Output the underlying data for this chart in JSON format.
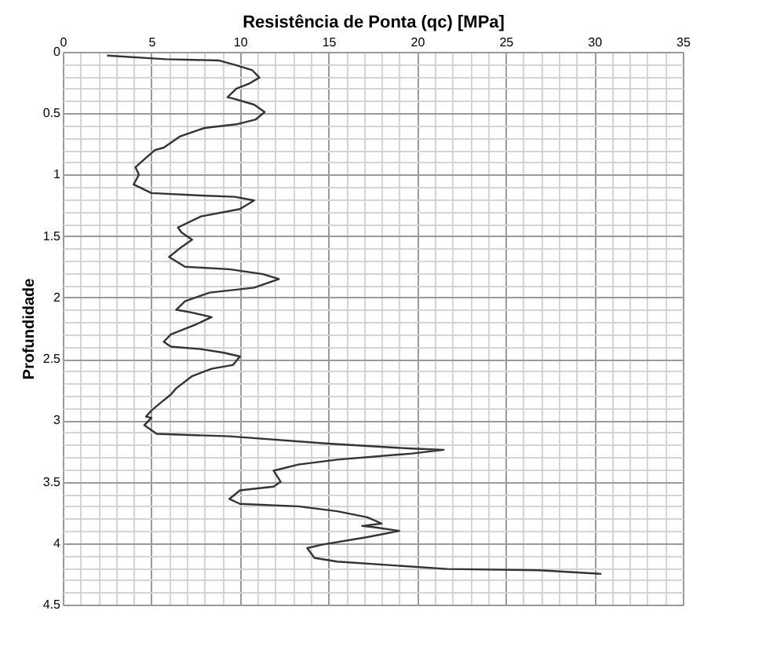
{
  "chart_data": {
    "type": "line",
    "xlabel": "Resistência de Ponta (qc)    [MPa]",
    "ylabel": "Profundidade",
    "xlim": [
      0,
      35
    ],
    "ylim": [
      4.5,
      0
    ],
    "xticks": [
      0,
      {
        "value": 1,
        "label": null
      },
      {
        "value": 2,
        "label": null
      },
      {
        "value": 3,
        "label": null
      },
      {
        "value": 4,
        "label": null
      },
      5,
      {
        "value": 6,
        "label": null
      },
      {
        "value": 7,
        "label": null
      },
      {
        "value": 8,
        "label": null
      },
      {
        "value": 9,
        "label": null
      },
      10,
      {
        "value": 11,
        "label": null
      },
      {
        "value": 12,
        "label": null
      },
      {
        "value": 13,
        "label": null
      },
      {
        "value": 14,
        "label": null
      },
      15,
      {
        "value": 16,
        "label": null
      },
      {
        "value": 17,
        "label": null
      },
      {
        "value": 18,
        "label": null
      },
      {
        "value": 19,
        "label": null
      },
      20,
      {
        "value": 21,
        "label": null
      },
      {
        "value": 22,
        "label": null
      },
      {
        "value": 23,
        "label": null
      },
      {
        "value": 24,
        "label": null
      },
      25,
      {
        "value": 26,
        "label": null
      },
      {
        "value": 27,
        "label": null
      },
      {
        "value": 28,
        "label": null
      },
      {
        "value": 29,
        "label": null
      },
      30,
      {
        "value": 31,
        "label": null
      },
      {
        "value": 32,
        "label": null
      },
      {
        "value": 33,
        "label": null
      },
      {
        "value": 34,
        "label": null
      },
      35
    ],
    "yticks": [
      0,
      {
        "value": 0.1,
        "label": null
      },
      {
        "value": 0.2,
        "label": null
      },
      {
        "value": 0.3,
        "label": null
      },
      {
        "value": 0.4,
        "label": null
      },
      0.5,
      {
        "value": 0.6,
        "label": null
      },
      {
        "value": 0.7,
        "label": null
      },
      {
        "value": 0.8,
        "label": null
      },
      {
        "value": 0.9,
        "label": null
      },
      1,
      {
        "value": 1.1,
        "label": null
      },
      {
        "value": 1.2,
        "label": null
      },
      {
        "value": 1.3,
        "label": null
      },
      {
        "value": 1.4,
        "label": null
      },
      1.5,
      {
        "value": 1.6,
        "label": null
      },
      {
        "value": 1.7,
        "label": null
      },
      {
        "value": 1.8,
        "label": null
      },
      {
        "value": 1.9,
        "label": null
      },
      2,
      {
        "value": 2.1,
        "label": null
      },
      {
        "value": 2.2,
        "label": null
      },
      {
        "value": 2.3,
        "label": null
      },
      {
        "value": 2.4,
        "label": null
      },
      2.5,
      {
        "value": 2.6,
        "label": null
      },
      {
        "value": 2.7,
        "label": null
      },
      {
        "value": 2.8,
        "label": null
      },
      {
        "value": 2.9,
        "label": null
      },
      3,
      {
        "value": 3.1,
        "label": null
      },
      {
        "value": 3.2,
        "label": null
      },
      {
        "value": 3.3,
        "label": null
      },
      {
        "value": 3.4,
        "label": null
      },
      3.5,
      {
        "value": 3.6,
        "label": null
      },
      {
        "value": 3.7,
        "label": null
      },
      {
        "value": 3.8,
        "label": null
      },
      {
        "value": 3.9,
        "label": null
      },
      4,
      {
        "value": 4.1,
        "label": null
      },
      {
        "value": 4.2,
        "label": null
      },
      {
        "value": 4.3,
        "label": null
      },
      {
        "value": 4.4,
        "label": null
      },
      4.5
    ],
    "grid": true,
    "legend": false,
    "marker": "none",
    "line_style": "solid",
    "series": [
      {
        "color": "#333333",
        "x": [
          2.5,
          5.8,
          8.8,
          9.8,
          10.7,
          11.1,
          10.5,
          9.8,
          9.3,
          9.6,
          10.8,
          11.4,
          10.9,
          9.8,
          8.0,
          6.6,
          6.2,
          5.7,
          5.2,
          4.4,
          4.1,
          4.3,
          4.0,
          4.3,
          5.0,
          7.8,
          9.7,
          10.8,
          10.0,
          7.8,
          6.5,
          6.7,
          7.3,
          6.6,
          6.0,
          6.9,
          9.4,
          11.3,
          12.2,
          10.8,
          8.3,
          6.9,
          6.4,
          7.2,
          8.4,
          7.5,
          6.1,
          5.7,
          6.1,
          7.8,
          9.1,
          10.0,
          9.6,
          8.4,
          7.3,
          6.4,
          6.1,
          5.5,
          5.0,
          4.7,
          5.0,
          4.6,
          5.0,
          5.3,
          9.4,
          15.0,
          19.7,
          21.5,
          19.7,
          15.5,
          13.3,
          11.9,
          12.3,
          11.9,
          10.0,
          9.4,
          10.0,
          13.3,
          15.5,
          17.2,
          18.0,
          16.9,
          17.6,
          19.0,
          17.2,
          14.7,
          13.8,
          14.2,
          15.5,
          21.7,
          26.9,
          30.4
        ],
        "values": [
          0.03,
          0.06,
          0.07,
          0.11,
          0.15,
          0.21,
          0.26,
          0.3,
          0.37,
          0.38,
          0.43,
          0.49,
          0.55,
          0.59,
          0.62,
          0.69,
          0.73,
          0.78,
          0.8,
          0.9,
          0.94,
          1.0,
          1.08,
          1.1,
          1.15,
          1.17,
          1.18,
          1.21,
          1.28,
          1.34,
          1.43,
          1.47,
          1.53,
          1.6,
          1.67,
          1.75,
          1.77,
          1.81,
          1.85,
          1.92,
          1.96,
          2.03,
          2.1,
          2.12,
          2.16,
          2.22,
          2.3,
          2.36,
          2.4,
          2.42,
          2.45,
          2.48,
          2.55,
          2.58,
          2.64,
          2.74,
          2.79,
          2.86,
          2.92,
          2.97,
          2.98,
          3.04,
          3.08,
          3.11,
          3.13,
          3.19,
          3.23,
          3.24,
          3.27,
          3.32,
          3.36,
          3.41,
          3.5,
          3.54,
          3.57,
          3.64,
          3.68,
          3.7,
          3.74,
          3.79,
          3.84,
          3.86,
          3.87,
          3.9,
          3.95,
          4.01,
          4.04,
          4.12,
          4.15,
          4.21,
          4.22,
          4.25
        ]
      }
    ]
  }
}
